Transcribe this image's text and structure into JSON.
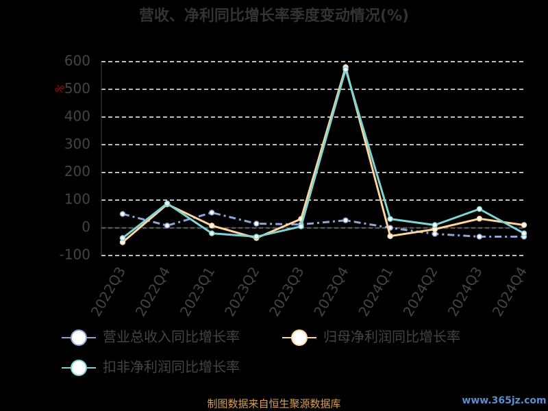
{
  "chart_data": {
    "type": "line",
    "title": "营收、净利同比增长率季度变动情况(%)",
    "y_label": "%",
    "categories": [
      "2022Q3",
      "2022Q4",
      "2023Q1",
      "2023Q2",
      "2023Q3",
      "2023Q4",
      "2024Q1",
      "2024Q2",
      "2024Q3",
      "2024Q4"
    ],
    "series": [
      {
        "name": "营业总收入同比增长率",
        "color": "#8ea5d8",
        "dash": true,
        "values": [
          50,
          8,
          55,
          15,
          12,
          27,
          0,
          -22,
          -32,
          -32
        ]
      },
      {
        "name": "归母净利润同比增长率",
        "color": "#ffd59e",
        "dash": false,
        "values": [
          -52,
          85,
          8,
          -37,
          32,
          580,
          -30,
          -5,
          33,
          10
        ]
      },
      {
        "name": "扣非净利润同比增长率",
        "color": "#7fd4d4",
        "dash": false,
        "values": [
          -37,
          88,
          -20,
          -32,
          5,
          572,
          32,
          10,
          68,
          -20
        ]
      }
    ],
    "ylim": [
      -100,
      600
    ],
    "yticks": [
      -100,
      0,
      100,
      200,
      300,
      400,
      500,
      600
    ],
    "grid": true,
    "source": "制图数据来自恒生聚源数据库",
    "watermark": "www.365jz.com"
  }
}
